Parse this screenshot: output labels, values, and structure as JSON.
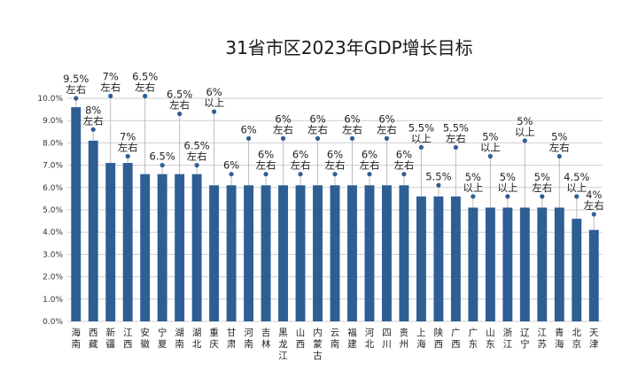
{
  "chart_data": {
    "type": "bar",
    "title": "31省市区2023年GDP增长目标",
    "xlabel": "",
    "ylabel": "",
    "ylim": [
      0,
      10
    ],
    "ytick_labels": [
      "0.0%",
      "1.0%",
      "2.0%",
      "3.0%",
      "4.0%",
      "5.0%",
      "6.0%",
      "7.0%",
      "8.0%",
      "9.0%",
      "10.0%"
    ],
    "grid": true,
    "categories": [
      "海南",
      "西藏",
      "新疆",
      "江西",
      "安徽",
      "宁夏",
      "湖南",
      "湖北",
      "重庆",
      "甘肃",
      "河南",
      "吉林",
      "黑龙江",
      "山西",
      "内蒙古",
      "云南",
      "福建",
      "河北",
      "四川",
      "贵州",
      "上海",
      "陕西",
      "广西",
      "广东",
      "山东",
      "浙江",
      "辽宁",
      "江苏",
      "青海",
      "北京",
      "天津"
    ],
    "values": [
      9.6,
      8.1,
      7.1,
      7.1,
      6.6,
      6.6,
      6.6,
      6.6,
      6.1,
      6.1,
      6.1,
      6.1,
      6.1,
      6.1,
      6.1,
      6.1,
      6.1,
      6.1,
      6.1,
      6.1,
      5.6,
      5.6,
      5.6,
      5.1,
      5.1,
      5.1,
      5.1,
      5.1,
      5.1,
      4.6,
      4.1
    ],
    "targets": [
      "9.5%",
      "8%",
      "7%",
      "7%",
      "6.5%",
      "6.5%",
      "6.5%",
      "6.5%",
      "6%",
      "6%",
      "6%",
      "6%",
      "6%",
      "6%",
      "6%",
      "6%",
      "6%",
      "6%",
      "6%",
      "6%",
      "5.5%",
      "5.5%",
      "5.5%",
      "5%",
      "5%",
      "5%",
      "5%",
      "5%",
      "5%",
      "4.5%",
      "4%"
    ],
    "qualifiers": [
      "左右",
      "左右",
      "左右",
      "左右",
      "左右",
      "",
      "左右",
      "左右",
      "以上",
      "",
      "",
      "左右",
      "左右",
      "左右",
      "左右",
      "左右",
      "左右",
      "左右",
      "左右",
      "左右",
      "以上",
      "",
      "左右",
      "以上",
      "以上",
      "以上",
      "以上",
      "左右",
      "左右",
      "以上",
      "左右"
    ],
    "label_heights": [
      10.0,
      8.6,
      10.1,
      7.4,
      10.1,
      7.0,
      9.3,
      7.0,
      9.4,
      6.6,
      8.2,
      6.6,
      8.2,
      6.6,
      8.2,
      6.6,
      8.2,
      6.6,
      8.2,
      6.6,
      7.8,
      6.1,
      7.8,
      5.6,
      7.4,
      5.6,
      8.1,
      5.6,
      7.4,
      5.6,
      4.8
    ],
    "colors": {
      "bar": "#2f5e94",
      "grid": "#cfcfcf",
      "text": "#222222"
    }
  }
}
